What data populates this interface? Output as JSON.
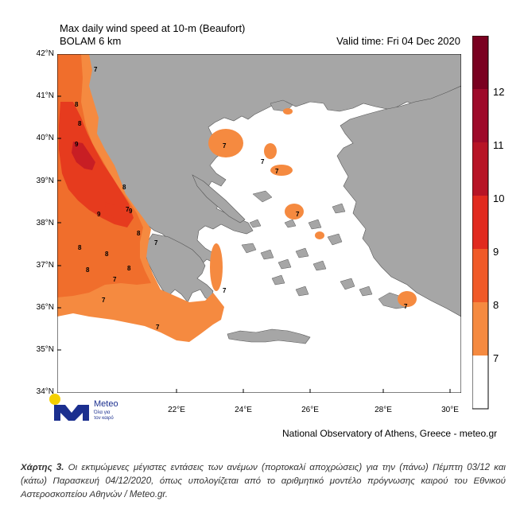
{
  "title": {
    "line1": "Max daily wind speed at 10-m (Beaufort)",
    "line2": "BOLAM 6 km",
    "valid": "Valid time: Fri 04 Dec 2020"
  },
  "lat_labels": [
    "42°N",
    "41°N",
    "40°N",
    "39°N",
    "38°N",
    "37°N",
    "36°N",
    "35°N",
    "34°N"
  ],
  "lon_labels": [
    "22°E",
    "24°E",
    "26°E",
    "28°E",
    "30°E"
  ],
  "colorbar": {
    "levels": [
      "12",
      "11",
      "10",
      "9",
      "8",
      "7"
    ],
    "colors": [
      "#7a0020",
      "#9e0a2a",
      "#c81e24",
      "#e63b1e",
      "#f06e2c",
      "#f58a40",
      "#ffffff"
    ]
  },
  "map_labels": [
    "7",
    "8",
    "8",
    "9",
    "9",
    "8",
    "8",
    "7",
    "9",
    "7",
    "7",
    "8",
    "8",
    "8",
    "8",
    "7",
    "7",
    "7",
    "7",
    "7",
    "7",
    "7",
    "7"
  ],
  "colors": {
    "land": "#a6a6a6",
    "sea": "#ffffff",
    "wind7": "#f58a40",
    "wind8": "#f06e2c",
    "wind9": "#e63b1e",
    "wind10": "#c81e24"
  },
  "logo": {
    "name": "Meteo",
    "tagline_1": "Όλα για",
    "tagline_2": "τον καιρό"
  },
  "credit": "National Observatory of Athens, Greece - meteo.gr",
  "caption": {
    "label": "Χάρτης 3.",
    "text": " Οι εκτιμώμενες μέγιστες εντάσεις των ανέμων (πορτοκαλί αποχρώσεις) για την (πάνω) Πέμπτη 03/12 και (κάτω) Παρασκευή 04/12/2020, όπως υπολογίζεται από το αριθμητικό μοντέλο πρόγνωσης καιρού του Εθνικού Αστεροσκοπείου Αθηνών / Meteo.gr."
  }
}
